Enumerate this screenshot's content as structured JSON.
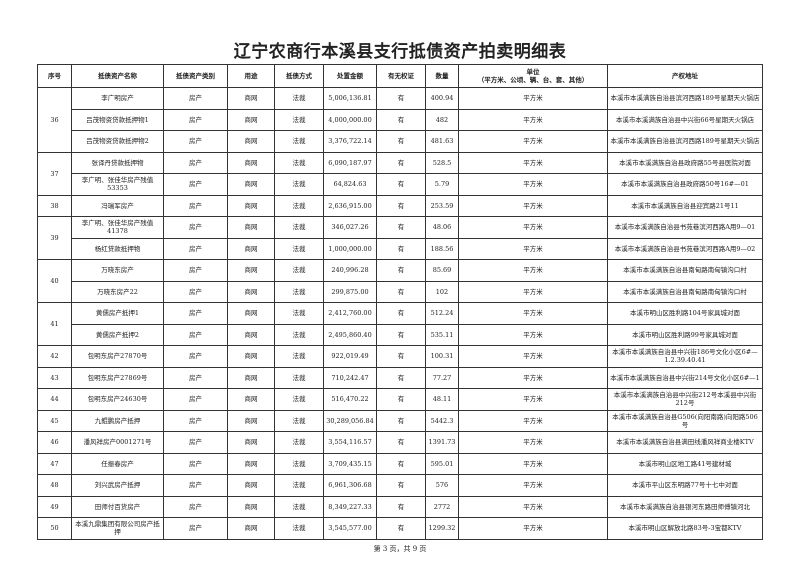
{
  "title": "辽宁农商行本溪县支行抵债资产拍卖明细表",
  "headers": [
    "序号",
    "抵债资产名称",
    "抵债资产类别",
    "用途",
    "抵债方式",
    "处置金额",
    "有无权证",
    "数量",
    "单位\n（平方米、公顷、辆、台、套、其他）",
    "产权地址"
  ],
  "groups": [
    {
      "seq": "36",
      "rows": [
        {
          "name": "李广明房产",
          "category": "房产",
          "use": "商网",
          "method": "法裁",
          "amount": "5,006,136.81",
          "cert": "有",
          "qty": "400.94",
          "unit": "平方米",
          "address": "本溪市本溪满族自治县滨河西路189号星期天火锅店"
        },
        {
          "name": "吕茂物资贷款抵押物1",
          "category": "房产",
          "use": "商网",
          "method": "法裁",
          "amount": "4,000,000.00",
          "cert": "有",
          "qty": "482",
          "unit": "平方米",
          "address": "本溪市本溪满族自治县中兴街66号星期天火锅店"
        },
        {
          "name": "吕茂物资贷款抵押物2",
          "category": "房产",
          "use": "商网",
          "method": "法裁",
          "amount": "3,376,722.14",
          "cert": "有",
          "qty": "481.63",
          "unit": "平方米",
          "address": "本溪市本溪满族自治县滨河西路189号星期天火锅店"
        }
      ]
    },
    {
      "seq": "37",
      "rows": [
        {
          "name": "张译丹贷款抵押物",
          "category": "房产",
          "use": "商网",
          "method": "法裁",
          "amount": "6,090,187.97",
          "cert": "有",
          "qty": "528.5",
          "unit": "平方米",
          "address": "本溪市本溪满族自治县政府路55号县医院对面"
        },
        {
          "name": "李广明、张佳华房产残值53353",
          "category": "房产",
          "use": "商网",
          "method": "法裁",
          "amount": "64,824.63",
          "cert": "有",
          "qty": "5.79",
          "unit": "平方米",
          "address": "本溪市本溪满族自治县政府路50号16#—01"
        }
      ]
    },
    {
      "seq": "38",
      "rows": [
        {
          "name": "冯瑞军房产",
          "category": "房产",
          "use": "商网",
          "method": "法裁",
          "amount": "2,636,915.00",
          "cert": "有",
          "qty": "253.59",
          "unit": "平方米",
          "address": "本溪市本溪满族自治县迎宾路21号11"
        }
      ]
    },
    {
      "seq": "39",
      "rows": [
        {
          "name": "李广明、张佳华房产残值41378",
          "category": "房产",
          "use": "商网",
          "method": "法裁",
          "amount": "346,027.26",
          "cert": "有",
          "qty": "48.06",
          "unit": "平方米",
          "address": "本溪市本溪满族自治县书苑巷滨河西路A用9—01"
        },
        {
          "name": "杨红贷款抵押物",
          "category": "房产",
          "use": "商网",
          "method": "法裁",
          "amount": "1,000,000.00",
          "cert": "有",
          "qty": "188.56",
          "unit": "平方米",
          "address": "本溪市本溪满族自治县书苑巷滨河西路A用9—02"
        }
      ]
    },
    {
      "seq": "40",
      "rows": [
        {
          "name": "万晓东房产",
          "category": "房产",
          "use": "商网",
          "method": "法裁",
          "amount": "240,996.28",
          "cert": "有",
          "qty": "85.69",
          "unit": "平方米",
          "address": "本溪市本溪满族自治县南甸路南甸镇沟口村"
        },
        {
          "name": "万晓东房产22",
          "category": "房产",
          "use": "商网",
          "method": "法裁",
          "amount": "299,875.00",
          "cert": "有",
          "qty": "102",
          "unit": "平方米",
          "address": "本溪市本溪满族自治县南甸路南甸镇沟口村"
        }
      ]
    },
    {
      "seq": "41",
      "rows": [
        {
          "name": "黄儒房产抵押1",
          "category": "房产",
          "use": "商网",
          "method": "法裁",
          "amount": "2,412,760.00",
          "cert": "有",
          "qty": "512.24",
          "unit": "平方米",
          "address": "本溪市明山区胜利路104号家具城对面"
        },
        {
          "name": "黄儒房产抵押2",
          "category": "房产",
          "use": "商网",
          "method": "法裁",
          "amount": "2,495,860.40",
          "cert": "有",
          "qty": "535.11",
          "unit": "平方米",
          "address": "本溪市明山区胜利路99号家具城对面"
        }
      ]
    },
    {
      "seq": "42",
      "rows": [
        {
          "name": "包明东房产27870号",
          "category": "房产",
          "use": "商网",
          "method": "法裁",
          "amount": "922,019.49",
          "cert": "有",
          "qty": "100.31",
          "unit": "平方米",
          "address": "本溪市本溪满族自治县中兴街186号文化小区6#—1.2.39.40.41"
        }
      ]
    },
    {
      "seq": "43",
      "rows": [
        {
          "name": "包明东房产27869号",
          "category": "房产",
          "use": "商网",
          "method": "法裁",
          "amount": "710,242.47",
          "cert": "有",
          "qty": "77.27",
          "unit": "平方米",
          "address": "本溪市本溪满族自治县中兴街214号文化小区6#—1"
        }
      ]
    },
    {
      "seq": "44",
      "rows": [
        {
          "name": "包明东房产24630号",
          "category": "房产",
          "use": "商网",
          "method": "法裁",
          "amount": "516,470.22",
          "cert": "有",
          "qty": "48.11",
          "unit": "平方米",
          "address": "本溪市本溪满族自治县中兴街212号本溪县中兴街212号"
        }
      ]
    },
    {
      "seq": "45",
      "rows": [
        {
          "name": "九鲲鹏房产抵押",
          "category": "房产",
          "use": "商网",
          "method": "法裁",
          "amount": "30,289,056.84",
          "cert": "有",
          "qty": "5442.3",
          "unit": "平方米",
          "address": "本溪市本溪满族自治县G506(向阳南路)向阳路506号"
        }
      ]
    },
    {
      "seq": "46",
      "rows": [
        {
          "name": "潘风祥房产0001271号",
          "category": "房产",
          "use": "商网",
          "method": "法裁",
          "amount": "3,554,116.57",
          "cert": "有",
          "qty": "1391.73",
          "unit": "平方米",
          "address": "本溪市本溪满族自治县满田线潘风祥商业楼KTV"
        }
      ]
    },
    {
      "seq": "47",
      "rows": [
        {
          "name": "任振春房产",
          "category": "房产",
          "use": "商网",
          "method": "法裁",
          "amount": "3,709,435.15",
          "cert": "有",
          "qty": "595.01",
          "unit": "平方米",
          "address": "本溪市明山区地工路41号建材城"
        }
      ]
    },
    {
      "seq": "48",
      "rows": [
        {
          "name": "刘兴武房产抵押",
          "category": "房产",
          "use": "商网",
          "method": "法裁",
          "amount": "6,961,306.68",
          "cert": "有",
          "qty": "576",
          "unit": "平方米",
          "address": "本溪市平山区东明路77号十七中对面"
        }
      ]
    },
    {
      "seq": "49",
      "rows": [
        {
          "name": "田师付百货房产",
          "category": "房产",
          "use": "商网",
          "method": "法裁",
          "amount": "8,349,227.33",
          "cert": "有",
          "qty": "2772",
          "unit": "平方米",
          "address": "本溪市本溪满族自治县银河东路田师傅镇河北"
        }
      ]
    },
    {
      "seq": "50",
      "rows": [
        {
          "name": "本溪九鼎集团有限公司房产抵押",
          "category": "房产",
          "use": "商网",
          "method": "法裁",
          "amount": "3,545,577.00",
          "cert": "有",
          "qty": "1299.32",
          "unit": "平方米",
          "address": "本溪市明山区解放北路83号-3宝都KTV"
        }
      ]
    }
  ],
  "footer": "第 3 页，共 9 页"
}
